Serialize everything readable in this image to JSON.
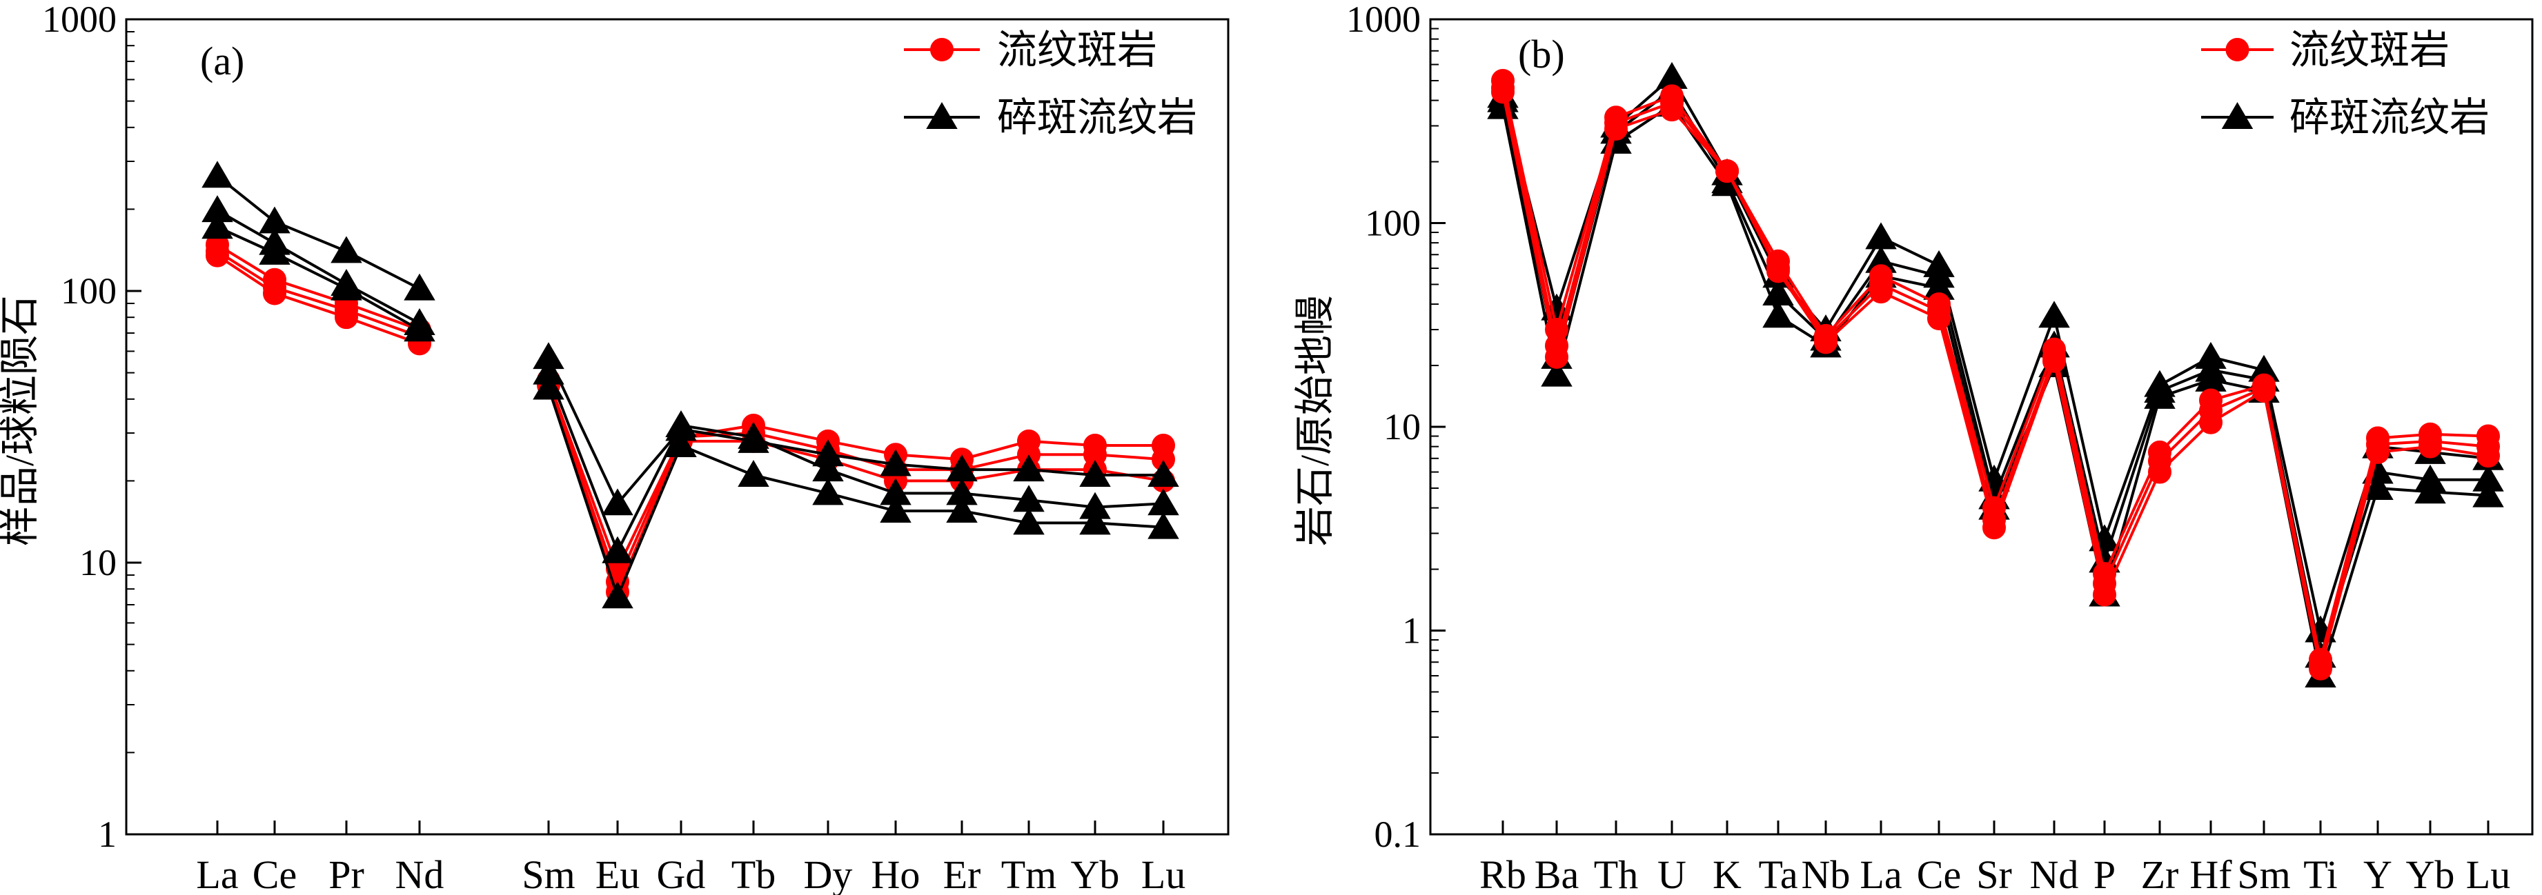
{
  "chart_data": [
    {
      "type": "line",
      "panel_label": "(a)",
      "ylabel": "样品/球粒陨石",
      "xlabel": "",
      "yscale": "log",
      "ylim": [
        1,
        1000
      ],
      "yticks": [
        "1",
        "10",
        "100",
        "1000"
      ],
      "categories": [
        "La",
        "Ce",
        "Pr",
        "Nd",
        "",
        "Sm",
        "Eu",
        "Gd",
        "Tb",
        "Dy",
        "Ho",
        "Er",
        "Tm",
        "Yb",
        "Lu"
      ],
      "legend": {
        "position": "top-right",
        "entries": [
          {
            "name": "流纹斑岩",
            "color": "#ff0000",
            "marker": "circle"
          },
          {
            "name": "碎斑流纹岩",
            "color": "#000000",
            "marker": "triangle"
          }
        ]
      },
      "series": [
        {
          "group": "流纹斑岩",
          "color": "#ff0000",
          "marker": "circle",
          "values": [
            148,
            110,
            90,
            72,
            null,
            47,
            9.5,
            29,
            32,
            28,
            25,
            24,
            28,
            27,
            27
          ]
        },
        {
          "group": "流纹斑岩",
          "color": "#ff0000",
          "marker": "circle",
          "values": [
            140,
            103,
            85,
            68,
            null,
            46,
            8.5,
            29,
            30,
            26,
            22,
            22,
            25,
            25,
            24
          ]
        },
        {
          "group": "流纹斑岩",
          "color": "#ff0000",
          "marker": "circle",
          "values": [
            135,
            98,
            80,
            64,
            null,
            45,
            7.8,
            28,
            28,
            24,
            20,
            20,
            22,
            22,
            20
          ]
        },
        {
          "group": "碎斑流纹岩",
          "color": "#000000",
          "marker": "triangle",
          "values": [
            265,
            180,
            140,
            102,
            null,
            57,
            16.5,
            31,
            28,
            25,
            23,
            22,
            22,
            21,
            21
          ]
        },
        {
          "group": "碎斑流纹岩",
          "color": "#000000",
          "marker": "triangle",
          "values": [
            198,
            150,
            106,
            76,
            null,
            50,
            11,
            32,
            29,
            22,
            18,
            18,
            17,
            16,
            16.5
          ]
        },
        {
          "group": "碎斑流纹岩",
          "color": "#000000",
          "marker": "triangle",
          "values": [
            172,
            138,
            102,
            72,
            null,
            44,
            7.5,
            27,
            21,
            18,
            15.5,
            15.5,
            14,
            14,
            13.5
          ]
        }
      ]
    },
    {
      "type": "line",
      "panel_label": "(b)",
      "ylabel": "岩石/原始地幔",
      "xlabel": "",
      "yscale": "log",
      "ylim": [
        0.1,
        1000
      ],
      "yticks": [
        "0.1",
        "1",
        "10",
        "100",
        "1000"
      ],
      "categories": [
        "Rb",
        "Ba",
        "Th",
        "U",
        "K",
        "Ta",
        "Nb",
        "La",
        "Ce",
        "Sr",
        "Nd",
        "P",
        "Zr",
        "Hf",
        "Sm",
        "Ti",
        "Y",
        "Yb",
        "Lu"
      ],
      "legend": {
        "position": "top-right",
        "entries": [
          {
            "name": "流纹斑岩",
            "color": "#ff0000",
            "marker": "circle"
          },
          {
            "name": "碎斑流纹岩",
            "color": "#000000",
            "marker": "triangle"
          }
        ]
      },
      "series": [
        {
          "group": "碎斑流纹岩",
          "color": "#000000",
          "marker": "triangle",
          "values": [
            420,
            38,
            300,
            520,
            175,
            55,
            30,
            85,
            62,
            5.5,
            35,
            2.8,
            16,
            22,
            19,
            1.0,
            8,
            7.5,
            7
          ]
        },
        {
          "group": "碎斑流纹岩",
          "color": "#000000",
          "marker": "triangle",
          "values": [
            400,
            22,
            280,
            450,
            160,
            45,
            27,
            65,
            55,
            4.5,
            25,
            2.2,
            15,
            19,
            17,
            0.75,
            6,
            5.5,
            5.5
          ]
        },
        {
          "group": "碎斑流纹岩",
          "color": "#000000",
          "marker": "triangle",
          "values": [
            370,
            18,
            250,
            380,
            155,
            35,
            25,
            55,
            48,
            4.0,
            20,
            1.5,
            14,
            17,
            15,
            0.6,
            5,
            4.8,
            4.6
          ]
        },
        {
          "group": "流纹斑岩",
          "color": "#ff0000",
          "marker": "circle",
          "values": [
            500,
            30,
            330,
            420,
            180,
            65,
            28,
            55,
            40,
            4.0,
            24,
            1.9,
            7.5,
            13.5,
            16,
            0.72,
            8.8,
            9.2,
            9.0
          ]
        },
        {
          "group": "流纹斑岩",
          "color": "#ff0000",
          "marker": "circle",
          "values": [
            460,
            25,
            310,
            390,
            180,
            60,
            27,
            50,
            37,
            3.5,
            22,
            1.7,
            6.8,
            12,
            15.5,
            0.68,
            8.2,
            8.5,
            8.0
          ]
        },
        {
          "group": "流纹斑岩",
          "color": "#ff0000",
          "marker": "circle",
          "values": [
            440,
            22,
            290,
            360,
            180,
            58,
            26,
            46,
            34,
            3.2,
            21,
            1.5,
            6.0,
            10.5,
            15,
            0.65,
            7.5,
            8.0,
            7.2
          ]
        }
      ]
    }
  ]
}
